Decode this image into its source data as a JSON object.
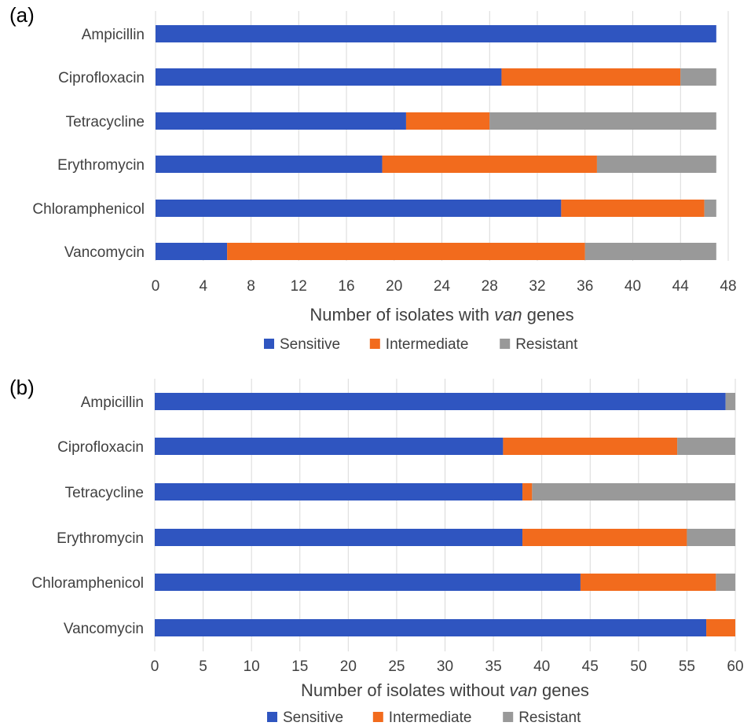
{
  "series_colors": {
    "Sensitive": "#2f55c0",
    "Intermediate": "#f26b1d",
    "Resistant": "#999999"
  },
  "chart_data": [
    {
      "panel_label": "(a)",
      "type": "bar",
      "orientation": "horizontal",
      "stacked": true,
      "categories": [
        "Ampicillin",
        "Ciprofloxacin",
        "Tetracycline",
        "Erythromycin",
        "Chloramphenicol",
        "Vancomycin"
      ],
      "series": [
        {
          "name": "Sensitive",
          "values": [
            47,
            29,
            21,
            19,
            34,
            6
          ]
        },
        {
          "name": "Intermediate",
          "values": [
            0,
            15,
            7,
            18,
            12,
            30
          ]
        },
        {
          "name": "Resistant",
          "values": [
            0,
            3,
            19,
            10,
            1,
            11
          ]
        }
      ],
      "xlabel_pre": "Number of isolates with ",
      "xlabel_italic": "van",
      "xlabel_post": " genes",
      "xlim": [
        0,
        48
      ],
      "xticks": [
        0,
        4,
        8,
        12,
        16,
        20,
        24,
        28,
        32,
        36,
        40,
        44,
        48
      ],
      "grid": true,
      "legend_position": "bottom"
    },
    {
      "panel_label": "(b)",
      "type": "bar",
      "orientation": "horizontal",
      "stacked": true,
      "categories": [
        "Ampicillin",
        "Ciprofloxacin",
        "Tetracycline",
        "Erythromycin",
        "Chloramphenicol",
        "Vancomycin"
      ],
      "series": [
        {
          "name": "Sensitive",
          "values": [
            59,
            36,
            38,
            38,
            44,
            57
          ]
        },
        {
          "name": "Intermediate",
          "values": [
            0,
            18,
            1,
            17,
            14,
            3
          ]
        },
        {
          "name": "Resistant",
          "values": [
            1,
            6,
            21,
            5,
            2,
            0
          ]
        }
      ],
      "xlabel_pre": "Number of isolates without ",
      "xlabel_italic": "van",
      "xlabel_post": " genes",
      "xlim": [
        0,
        60
      ],
      "xticks": [
        0,
        5,
        10,
        15,
        20,
        25,
        30,
        35,
        40,
        45,
        50,
        55,
        60
      ],
      "grid": true,
      "legend_position": "bottom"
    }
  ]
}
